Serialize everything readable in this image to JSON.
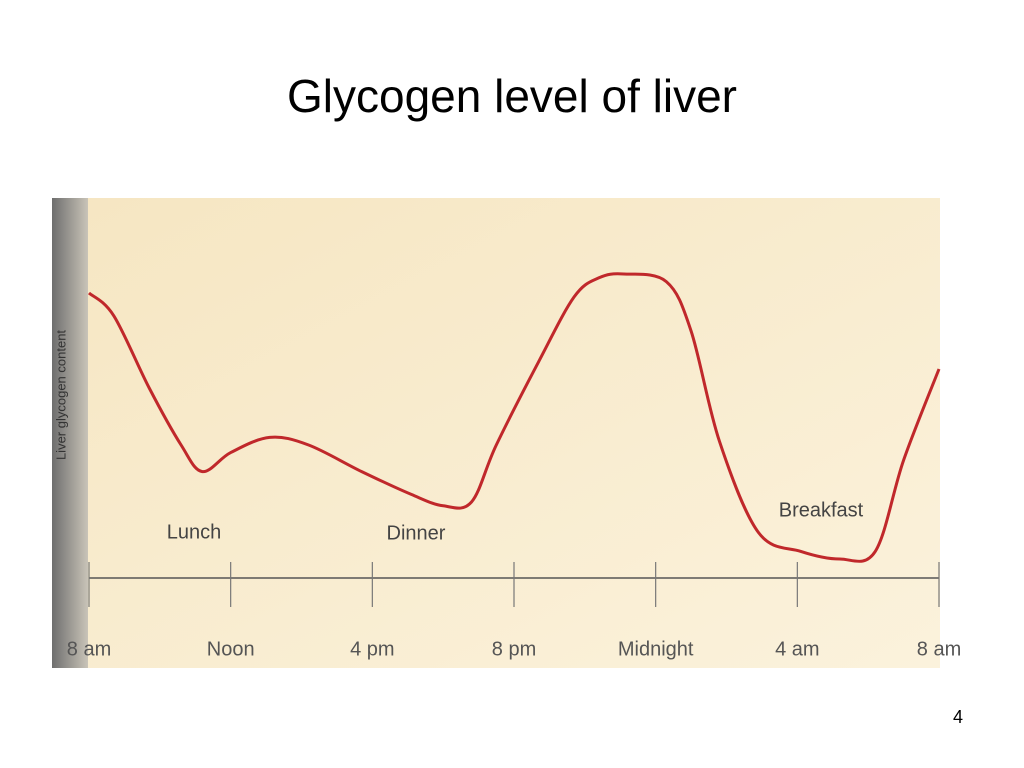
{
  "chart_data": {
    "type": "line",
    "title": "Glycogen level of liver",
    "y_label": "Liver glycogen content",
    "x": [
      0,
      0.7,
      1.7,
      2.6,
      3.2,
      4,
      5.1,
      6.2,
      7.7,
      9.1,
      10,
      10.8,
      11.5,
      12.7,
      13.7,
      14.4,
      15.1,
      16.3,
      17,
      17.8,
      18.9,
      20.1,
      21.2,
      22.2,
      23,
      24
    ],
    "values": [
      75,
      69,
      50,
      35,
      28,
      33,
      37,
      35,
      28,
      22,
      19,
      20,
      35,
      57,
      74,
      79,
      80,
      78,
      65,
      36,
      12,
      7,
      5,
      7,
      31,
      55
    ],
    "color": "#c0282b",
    "xlim": [
      0,
      24
    ],
    "xticks": [
      {
        "value": 0,
        "label": "8 am"
      },
      {
        "value": 4,
        "label": "Noon"
      },
      {
        "value": 8,
        "label": "4 pm"
      },
      {
        "value": 12,
        "label": "8 pm"
      },
      {
        "value": 16,
        "label": "Midnight"
      },
      {
        "value": 20,
        "label": "4 am"
      },
      {
        "value": 24,
        "label": "8 am"
      }
    ],
    "ylim": [
      0,
      100
    ],
    "annotations": [
      "Lunch",
      "Dinner",
      "Breakfast"
    ]
  },
  "page_number": "4"
}
